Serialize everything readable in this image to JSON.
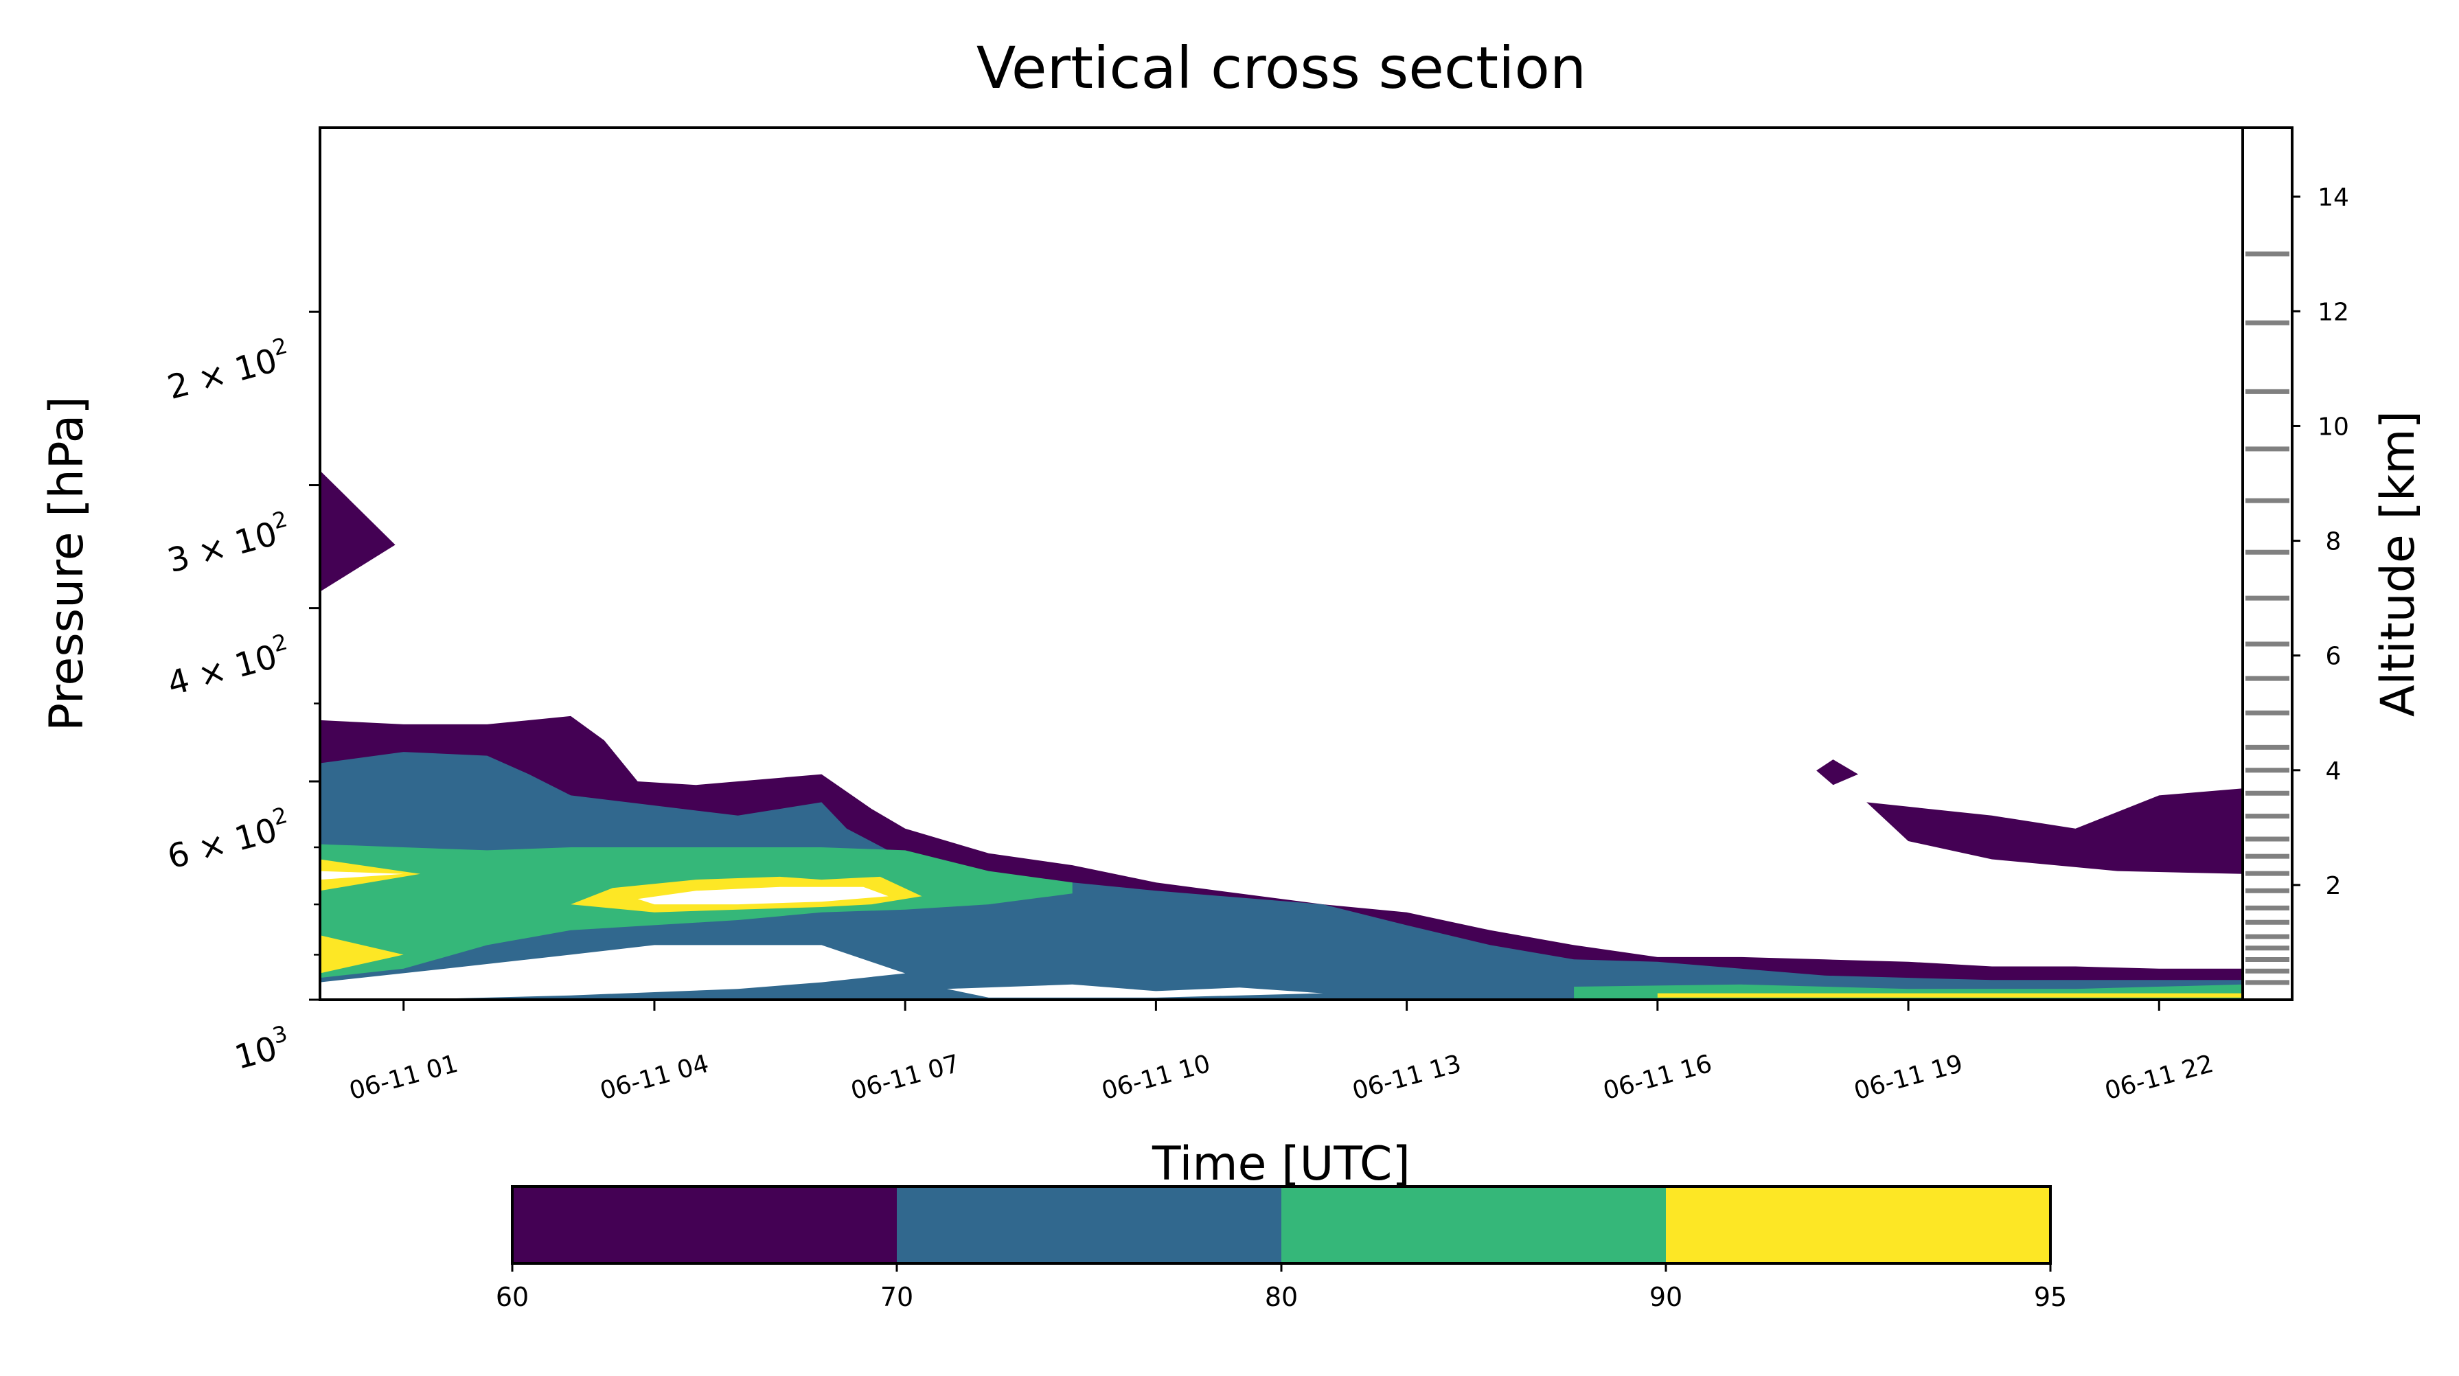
{
  "chart_data": {
    "type": "heatmap",
    "title": "Vertical cross section",
    "xlabel": "Time [UTC]",
    "ylabel": "Pressure [hPa]",
    "y2label": "Altitude [km]",
    "x_range": [
      0,
      23
    ],
    "x_tick_values": [
      1,
      4,
      7,
      10,
      13,
      16,
      19,
      22
    ],
    "x_tick_labels": [
      "06-11 01",
      "06-11 04",
      "06-11 07",
      "06-11 10",
      "06-11 13",
      "06-11 16",
      "06-11 19",
      "06-11 22"
    ],
    "y_scale": "log",
    "y_range": [
      1000,
      130
    ],
    "y_major_ticks": [
      {
        "value": 200,
        "coef": "2",
        "exp": "2"
      },
      {
        "value": 300,
        "coef": "3",
        "exp": "2"
      },
      {
        "value": 400,
        "coef": "4",
        "exp": "2"
      },
      {
        "value": 600,
        "coef": "6",
        "exp": "2"
      },
      {
        "value": 1000,
        "coef": "10",
        "exp": "3"
      }
    ],
    "y_minor_ticks": [
      500,
      700,
      800,
      900
    ],
    "altitude_ticks": [
      2,
      4,
      6,
      8,
      10,
      12,
      14
    ],
    "altitude_level_marks": [
      0.3,
      0.5,
      0.7,
      0.9,
      1.1,
      1.35,
      1.6,
      1.9,
      2.2,
      2.5,
      2.8,
      3.2,
      3.6,
      4.0,
      4.4,
      5.0,
      5.6,
      6.2,
      7.0,
      7.8,
      8.7,
      9.6,
      10.6,
      11.8,
      13.0
    ],
    "colorbar": {
      "levels": [
        60,
        70,
        80,
        90,
        95
      ],
      "colors": [
        "#440154",
        "#31688e",
        "#35b779",
        "#fde725"
      ],
      "tick_labels": [
        "60",
        "70",
        "80",
        "90",
        "95"
      ]
    },
    "contours": [
      {
        "level": 60,
        "color": "#440154",
        "points": [
          [
            0,
            290
          ],
          [
            0.9,
            345
          ],
          [
            0,
            385
          ]
        ]
      },
      {
        "level": 60,
        "color": "#440154",
        "points": [
          [
            0,
            520
          ],
          [
            1,
            525
          ],
          [
            2,
            525
          ],
          [
            3,
            515
          ],
          [
            3.4,
            545
          ],
          [
            3.8,
            600
          ],
          [
            4.5,
            605
          ],
          [
            5,
            600
          ],
          [
            6,
            590
          ],
          [
            6.6,
            640
          ],
          [
            7,
            670
          ],
          [
            8,
            710
          ],
          [
            9,
            730
          ],
          [
            10,
            760
          ],
          [
            11,
            780
          ],
          [
            12,
            800
          ],
          [
            13,
            815
          ],
          [
            14,
            850
          ],
          [
            15,
            880
          ],
          [
            16,
            905
          ],
          [
            17,
            905
          ],
          [
            18,
            910
          ],
          [
            19,
            915
          ],
          [
            20,
            925
          ],
          [
            21,
            925
          ],
          [
            22,
            930
          ],
          [
            23,
            930
          ],
          [
            23,
            1000
          ],
          [
            0,
            1000
          ]
        ]
      },
      {
        "level": 60,
        "color": "#440154",
        "points": [
          [
            17.9,
            585
          ],
          [
            18.1,
            570
          ],
          [
            18.4,
            590
          ],
          [
            18.1,
            605
          ]
        ]
      },
      {
        "level": 60,
        "color": "#440154",
        "points": [
          [
            18.5,
            630
          ],
          [
            20,
            650
          ],
          [
            21,
            670
          ],
          [
            22,
            620
          ],
          [
            23,
            610
          ],
          [
            23,
            745
          ],
          [
            21.5,
            740
          ],
          [
            20,
            720
          ],
          [
            19,
            690
          ]
        ]
      },
      {
        "level": 70,
        "color": "#31688e",
        "points": [
          [
            0,
            575
          ],
          [
            1,
            560
          ],
          [
            2,
            565
          ],
          [
            2.5,
            590
          ],
          [
            3,
            620
          ],
          [
            5,
            650
          ],
          [
            6,
            630
          ],
          [
            6.3,
            670
          ],
          [
            7,
            720
          ],
          [
            8,
            745
          ],
          [
            9,
            760
          ],
          [
            10,
            775
          ],
          [
            12,
            800
          ],
          [
            13,
            840
          ],
          [
            14,
            880
          ],
          [
            15,
            910
          ],
          [
            16,
            915
          ],
          [
            17,
            930
          ],
          [
            18,
            945
          ],
          [
            20,
            955
          ],
          [
            23,
            955
          ],
          [
            23,
            1000
          ],
          [
            0,
            1000
          ]
        ]
      },
      {
        "level": 80,
        "color": "#35b779",
        "points": [
          [
            0,
            695
          ],
          [
            1,
            700
          ],
          [
            2,
            705
          ],
          [
            3,
            700
          ],
          [
            6,
            700
          ],
          [
            7,
            705
          ],
          [
            8,
            740
          ],
          [
            9,
            760
          ],
          [
            9,
            780
          ],
          [
            8,
            800
          ],
          [
            7,
            810
          ],
          [
            6,
            815
          ],
          [
            5,
            830
          ],
          [
            3,
            850
          ],
          [
            2,
            880
          ],
          [
            1,
            930
          ],
          [
            0,
            950
          ]
        ]
      },
      {
        "level": 80,
        "color": "#35b779",
        "points": [
          [
            15,
            970
          ],
          [
            17,
            965
          ],
          [
            19,
            975
          ],
          [
            21,
            975
          ],
          [
            23,
            965
          ],
          [
            23,
            1000
          ],
          [
            15,
            1000
          ]
        ]
      },
      {
        "level": 90,
        "color": "#fde725",
        "points": [
          [
            0,
            720
          ],
          [
            1.2,
            745
          ],
          [
            0,
            775
          ]
        ]
      },
      {
        "level": 90,
        "color": "#fde725",
        "points": [
          [
            3,
            800
          ],
          [
            3.5,
            770
          ],
          [
            4.5,
            755
          ],
          [
            5.5,
            750
          ],
          [
            6,
            755
          ],
          [
            6.7,
            750
          ],
          [
            7.2,
            785
          ],
          [
            6.6,
            800
          ],
          [
            6,
            805
          ],
          [
            5,
            810
          ],
          [
            4,
            815
          ]
        ]
      },
      {
        "level": 90,
        "color": "#fde725",
        "points": [
          [
            0,
            860
          ],
          [
            1,
            900
          ],
          [
            0,
            940
          ]
        ]
      },
      {
        "level": 90,
        "color": "#fde725",
        "points": [
          [
            16,
            985
          ],
          [
            20,
            985
          ],
          [
            23,
            985
          ],
          [
            23,
            995
          ],
          [
            16,
            995
          ]
        ]
      },
      {
        "level": 95,
        "color": "#ffffff",
        "points": [
          [
            0,
            740
          ],
          [
            1,
            745
          ],
          [
            0,
            755
          ]
        ]
      },
      {
        "level": 95,
        "color": "#ffffff",
        "points": [
          [
            3.8,
            790
          ],
          [
            4.5,
            775
          ],
          [
            5.5,
            768
          ],
          [
            6.5,
            768
          ],
          [
            6.8,
            785
          ],
          [
            6,
            795
          ],
          [
            5,
            800
          ],
          [
            4,
            800
          ]
        ]
      },
      {
        "level": 0,
        "color": "#ffffff",
        "points": [
          [
            0,
            960
          ],
          [
            1.5,
            930
          ],
          [
            3,
            900
          ],
          [
            4,
            880
          ],
          [
            6,
            880
          ],
          [
            7,
            940
          ],
          [
            6,
            960
          ],
          [
            5,
            975
          ],
          [
            3,
            990
          ],
          [
            1,
            1000
          ],
          [
            0,
            1000
          ]
        ]
      },
      {
        "level": 0,
        "color": "#ffffff",
        "points": [
          [
            7.5,
            975
          ],
          [
            9,
            965
          ],
          [
            10,
            980
          ],
          [
            11,
            972
          ],
          [
            12,
            985
          ],
          [
            10,
            995
          ],
          [
            8,
            995
          ]
        ]
      }
    ]
  }
}
